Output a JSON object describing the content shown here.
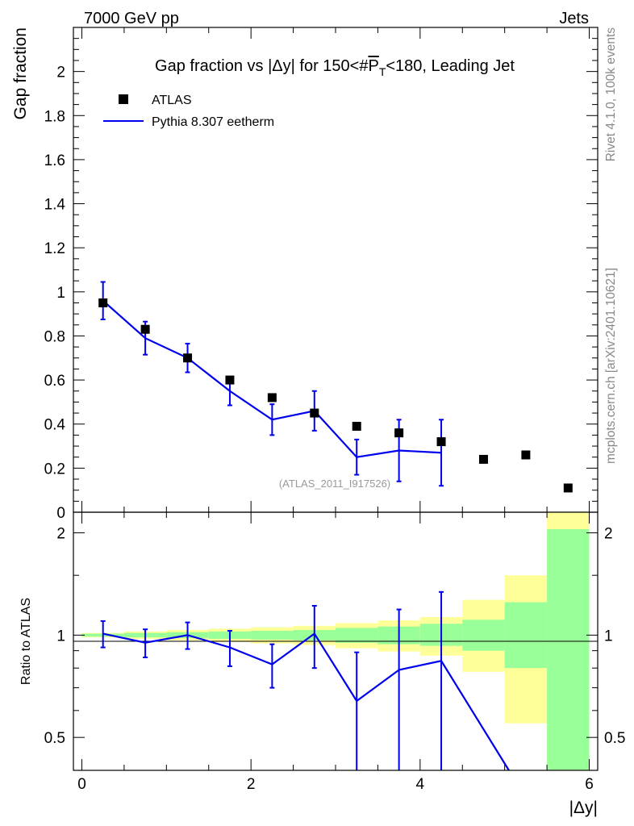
{
  "header": {
    "energy_label": "7000 GeV pp",
    "process_label": "Jets"
  },
  "side_labels": {
    "rivet": "Rivet 4.1.0,  100k events",
    "mcplots": "mcplots.cern.ch [arXiv:2401.10621]"
  },
  "chart_data": [
    {
      "type": "scatter",
      "panel": "main",
      "title": "Gap fraction vs |Δy| for 150<#overline{P_{T}}<180, Leading Jet",
      "title_parts": {
        "before": "Gap fraction vs |Δy| for 150<#",
        "overline": "P",
        "subscript": "T",
        "after": "<180, Leading Jet"
      },
      "ylabel": "Gap fraction",
      "xlim": [
        -0.1,
        6.1
      ],
      "ylim": [
        0,
        2.2
      ],
      "yticks": [
        0,
        0.2,
        0.4,
        0.6,
        0.8,
        1,
        1.2,
        1.4,
        1.6,
        1.8,
        2
      ],
      "ytick_labels": [
        "0",
        "0.2",
        "0.4",
        "0.6",
        "0.8",
        "1",
        "1.2",
        "1.4",
        "1.6",
        "1.8",
        "2"
      ],
      "watermark": "(ATLAS_2011_I917526)",
      "legend": {
        "position": "top-left",
        "entries": [
          "ATLAS",
          "Pythia 8.307 eetherm"
        ]
      },
      "series": [
        {
          "name": "ATLAS",
          "style": "marker",
          "color": "#000000",
          "x": [
            0.25,
            0.75,
            1.25,
            1.75,
            2.25,
            2.75,
            3.25,
            3.75,
            4.25,
            4.75,
            5.25,
            5.75
          ],
          "y": [
            0.95,
            0.83,
            0.7,
            0.6,
            0.52,
            0.45,
            0.39,
            0.36,
            0.32,
            0.24,
            0.26,
            0.11
          ]
        },
        {
          "name": "Pythia 8.307 eetherm",
          "style": "line",
          "color": "#0000ee",
          "x": [
            0.25,
            0.75,
            1.25,
            1.75,
            2.25,
            2.75,
            3.25,
            3.75,
            4.25
          ],
          "y": [
            0.96,
            0.79,
            0.7,
            0.55,
            0.42,
            0.46,
            0.25,
            0.28,
            0.27
          ],
          "yerr": [
            0.085,
            0.075,
            0.065,
            0.065,
            0.07,
            0.09,
            0.08,
            0.14,
            0.15
          ]
        }
      ]
    },
    {
      "type": "line",
      "panel": "ratio",
      "ylabel": "Ratio to ATLAS",
      "xlabel": "|Δy|",
      "xlim": [
        -0.1,
        6.1
      ],
      "ylim": [
        0.4,
        2.3
      ],
      "yscale": "log",
      "xticks": [
        0,
        2,
        4,
        6
      ],
      "xtick_labels": [
        "0",
        "2",
        "4",
        "6"
      ],
      "yticks": [
        0.5,
        1,
        2
      ],
      "ytick_labels": [
        "0.5",
        "1",
        "2"
      ],
      "bins": [
        [
          0,
          0.5
        ],
        [
          0.5,
          1
        ],
        [
          1,
          1.5
        ],
        [
          1.5,
          2
        ],
        [
          2,
          2.5
        ],
        [
          2.5,
          3
        ],
        [
          3,
          3.5
        ],
        [
          3.5,
          4
        ],
        [
          4,
          4.5
        ],
        [
          4.5,
          5
        ],
        [
          5,
          5.5
        ],
        [
          5.5,
          6
        ]
      ],
      "band_green": [
        [
          0.99,
          1.01
        ],
        [
          0.985,
          1.015
        ],
        [
          0.98,
          1.02
        ],
        [
          0.975,
          1.025
        ],
        [
          0.97,
          1.03
        ],
        [
          0.965,
          1.035
        ],
        [
          0.95,
          1.05
        ],
        [
          0.94,
          1.06
        ],
        [
          0.93,
          1.08
        ],
        [
          0.9,
          1.11
        ],
        [
          0.8,
          1.25
        ],
        [
          0.4,
          2.05
        ]
      ],
      "band_yellow": [
        [
          0.985,
          1.015
        ],
        [
          0.975,
          1.025
        ],
        [
          0.965,
          1.035
        ],
        [
          0.955,
          1.045
        ],
        [
          0.945,
          1.055
        ],
        [
          0.935,
          1.065
        ],
        [
          0.915,
          1.085
        ],
        [
          0.895,
          1.105
        ],
        [
          0.87,
          1.13
        ],
        [
          0.78,
          1.27
        ],
        [
          0.55,
          1.5
        ],
        [
          0.4,
          2.3
        ]
      ],
      "series": [
        {
          "name": "Pythia 8.307 eetherm / ATLAS",
          "color": "#0000ee",
          "x": [
            0.25,
            0.75,
            1.25,
            1.75,
            2.25,
            2.75,
            3.25,
            3.75,
            4.25,
            5.05
          ],
          "y": [
            1.01,
            0.95,
            1.0,
            0.92,
            0.82,
            1.01,
            0.64,
            0.79,
            0.84,
            0.4
          ],
          "yerr": [
            0.09,
            0.09,
            0.09,
            0.11,
            0.12,
            0.21,
            0.25,
            0.4,
            0.5,
            null
          ]
        }
      ]
    }
  ]
}
